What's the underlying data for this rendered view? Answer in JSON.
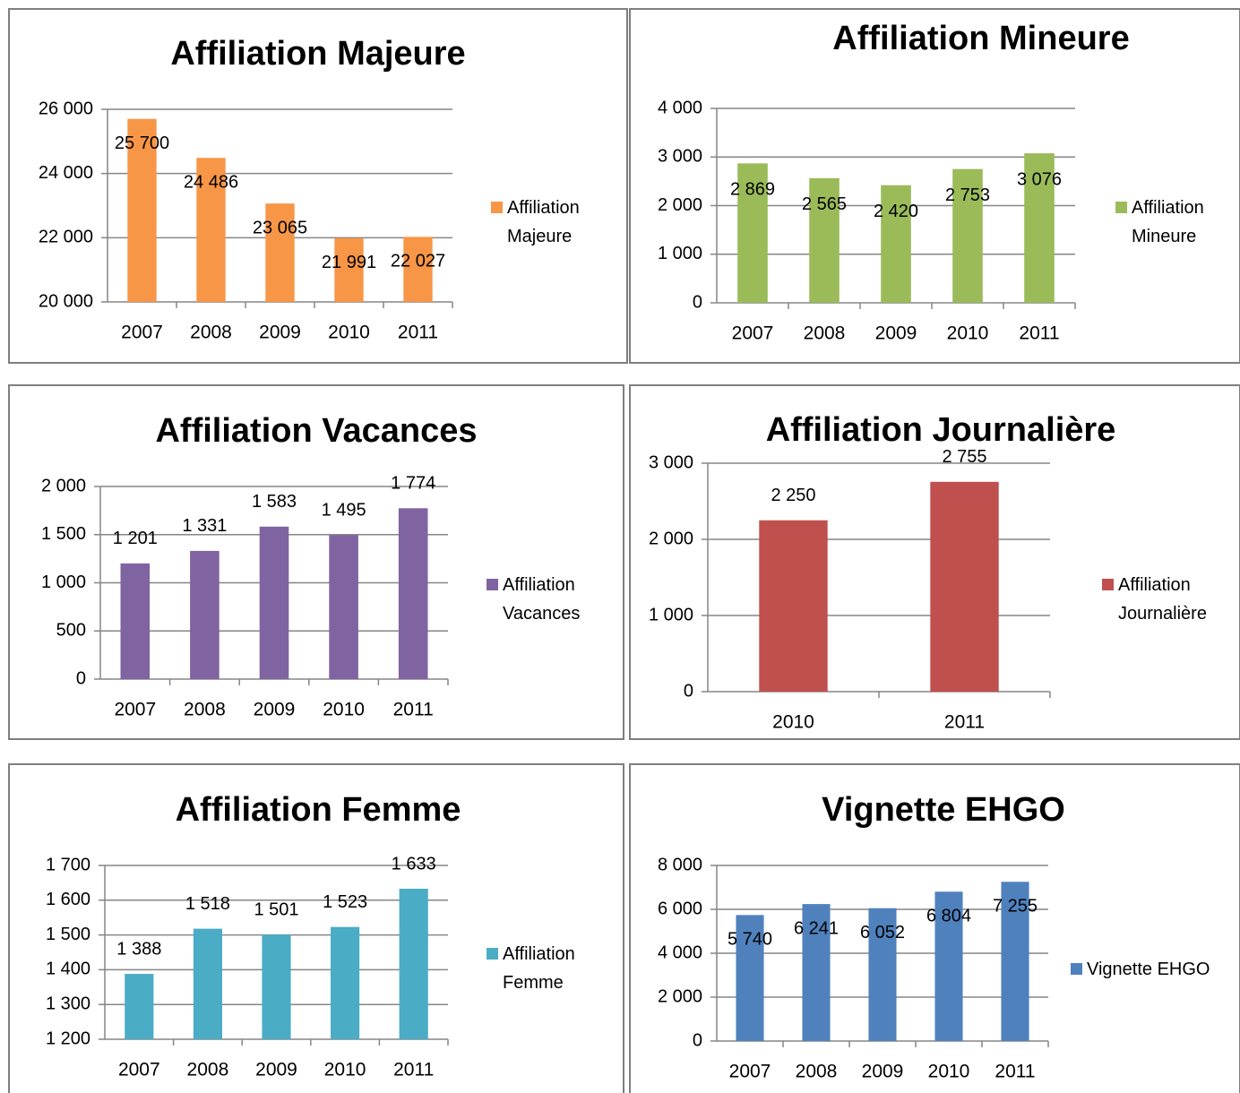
{
  "chart_data": [
    {
      "type": "bar",
      "title": "Affiliation Majeure",
      "categories": [
        "2007",
        "2008",
        "2009",
        "2010",
        "2011"
      ],
      "series": [
        {
          "name": "Affiliation Majeure",
          "color": "#f79646",
          "values": [
            25700,
            24486,
            23065,
            21991,
            22027
          ],
          "value_labels": [
            "25 700",
            "24 486",
            "23 065",
            "21 991",
            "22 027"
          ]
        }
      ],
      "ylim": [
        20000,
        26000
      ],
      "yticks": [
        {
          "value": 20000,
          "label": "20 000"
        },
        {
          "value": 22000,
          "label": "22 000"
        },
        {
          "value": 24000,
          "label": "24 000"
        },
        {
          "value": 26000,
          "label": "26 000"
        }
      ],
      "grid": true,
      "legend": "right"
    },
    {
      "type": "bar",
      "title": "Affiliation Mineure",
      "categories": [
        "2007",
        "2008",
        "2009",
        "2010",
        "2011"
      ],
      "series": [
        {
          "name": "Affiliation Mineure",
          "color": "#9bbb59",
          "values": [
            2869,
            2565,
            2420,
            2753,
            3076
          ],
          "value_labels": [
            "2 869",
            "2 565",
            "2 420",
            "2 753",
            "3 076"
          ]
        }
      ],
      "ylim": [
        0,
        4000
      ],
      "yticks": [
        0,
        {
          "value": 1000,
          "label": "1 000"
        },
        {
          "value": 2000,
          "label": "2 000"
        },
        {
          "value": 3000,
          "label": "3 000"
        },
        {
          "value": 4000,
          "label": "4 000"
        }
      ],
      "grid": true,
      "legend": "right"
    },
    {
      "type": "bar",
      "title": "Affiliation Vacances",
      "categories": [
        "2007",
        "2008",
        "2009",
        "2010",
        "2011"
      ],
      "series": [
        {
          "name": "Affiliation Vacances",
          "color": "#8064a2",
          "values": [
            1201,
            1331,
            1583,
            1495,
            1774
          ],
          "value_labels": [
            "1 201",
            "1 331",
            "1 583",
            "1 495",
            "1 774"
          ]
        }
      ],
      "ylim": [
        0,
        2000
      ],
      "yticks": [
        0,
        500,
        {
          "value": 1000,
          "label": "1 000"
        },
        {
          "value": 1500,
          "label": "1 500"
        },
        {
          "value": 2000,
          "label": "2 000"
        }
      ],
      "grid": true,
      "legend": "right"
    },
    {
      "type": "bar",
      "title": "Affiliation Journalière",
      "categories": [
        "2010",
        "2011"
      ],
      "series": [
        {
          "name": "Affiliation Journalière",
          "color": "#c0504d",
          "values": [
            2250,
            2755
          ],
          "value_labels": [
            "2 250",
            "2 755"
          ]
        }
      ],
      "ylim": [
        0,
        3000
      ],
      "yticks": [
        0,
        {
          "value": 1000,
          "label": "1 000"
        },
        {
          "value": 2000,
          "label": "2 000"
        },
        {
          "value": 3000,
          "label": "3 000"
        }
      ],
      "grid": true,
      "legend": "right"
    },
    {
      "type": "bar",
      "title": "Affiliation Femme",
      "categories": [
        "2007",
        "2008",
        "2009",
        "2010",
        "2011"
      ],
      "series": [
        {
          "name": "Affiliation Femme",
          "color": "#4bacc6",
          "values": [
            1388,
            1518,
            1501,
            1523,
            1633
          ],
          "value_labels": [
            "1 388",
            "1 518",
            "1 501",
            "1 523",
            "1 633"
          ]
        }
      ],
      "ylim": [
        1200,
        1700
      ],
      "yticks": [
        {
          "value": 1200,
          "label": "1 200"
        },
        {
          "value": 1300,
          "label": "1 300"
        },
        {
          "value": 1400,
          "label": "1 400"
        },
        {
          "value": 1500,
          "label": "1 500"
        },
        {
          "value": 1600,
          "label": "1 600"
        },
        {
          "value": 1700,
          "label": "1 700"
        }
      ],
      "grid": true,
      "legend": "right"
    },
    {
      "type": "bar",
      "title": "Vignette EHGO",
      "categories": [
        "2007",
        "2008",
        "2009",
        "2010",
        "2011"
      ],
      "series": [
        {
          "name": "Vignette EHGO",
          "color": "#4f81bd",
          "values": [
            5740,
            6241,
            6052,
            6804,
            7255
          ],
          "value_labels": [
            "5 740",
            "6 241",
            "6 052",
            "6 804",
            "7 255"
          ]
        }
      ],
      "ylim": [
        0,
        8000
      ],
      "yticks": [
        0,
        {
          "value": 2000,
          "label": "2 000"
        },
        {
          "value": 4000,
          "label": "4 000"
        },
        {
          "value": 6000,
          "label": "6 000"
        },
        {
          "value": 8000,
          "label": "8 000"
        }
      ],
      "grid": true,
      "legend": "right"
    }
  ]
}
